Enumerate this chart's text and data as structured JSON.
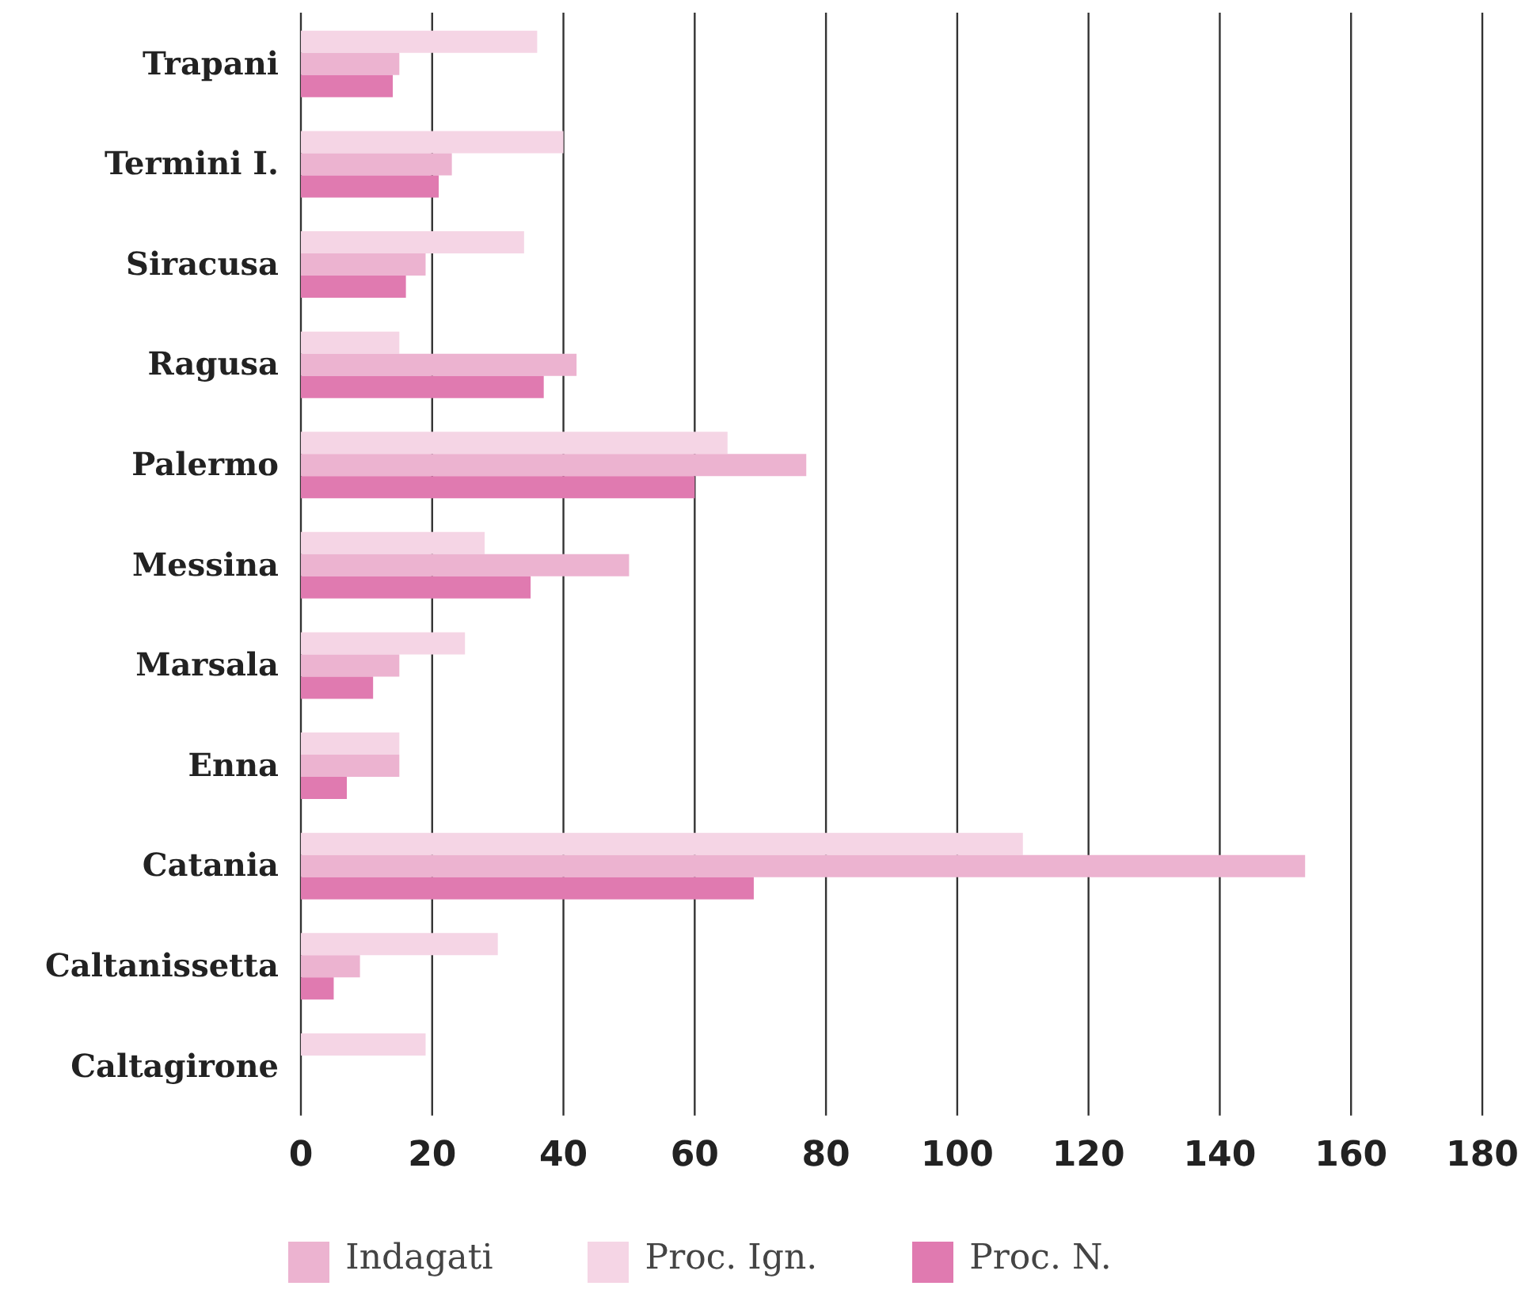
{
  "chart_data": {
    "type": "bar",
    "orientation": "horizontal",
    "categories": [
      "Trapani",
      "Termini I.",
      "Siracusa",
      "Ragusa",
      "Palermo",
      "Messina",
      "Marsala",
      "Enna",
      "Catania",
      "Caltanissetta",
      "Caltagirone"
    ],
    "series": [
      {
        "name": "Proc. Ign.",
        "color": "#f5d5e5",
        "values": [
          36,
          40,
          34,
          15,
          65,
          28,
          25,
          15,
          110,
          30,
          19
        ]
      },
      {
        "name": "Indagati",
        "color": "#ecb3d0",
        "values": [
          15,
          23,
          19,
          42,
          77,
          50,
          15,
          15,
          153,
          9,
          null
        ]
      },
      {
        "name": "Proc. N.",
        "color": "#e07ab0",
        "values": [
          14,
          21,
          16,
          37,
          60,
          35,
          11,
          7,
          69,
          5,
          null
        ]
      }
    ],
    "xlim": [
      0,
      180
    ],
    "xticks": [
      0,
      20,
      40,
      60,
      80,
      100,
      120,
      140,
      160,
      180
    ],
    "grid": "x",
    "legend": "bottom"
  }
}
